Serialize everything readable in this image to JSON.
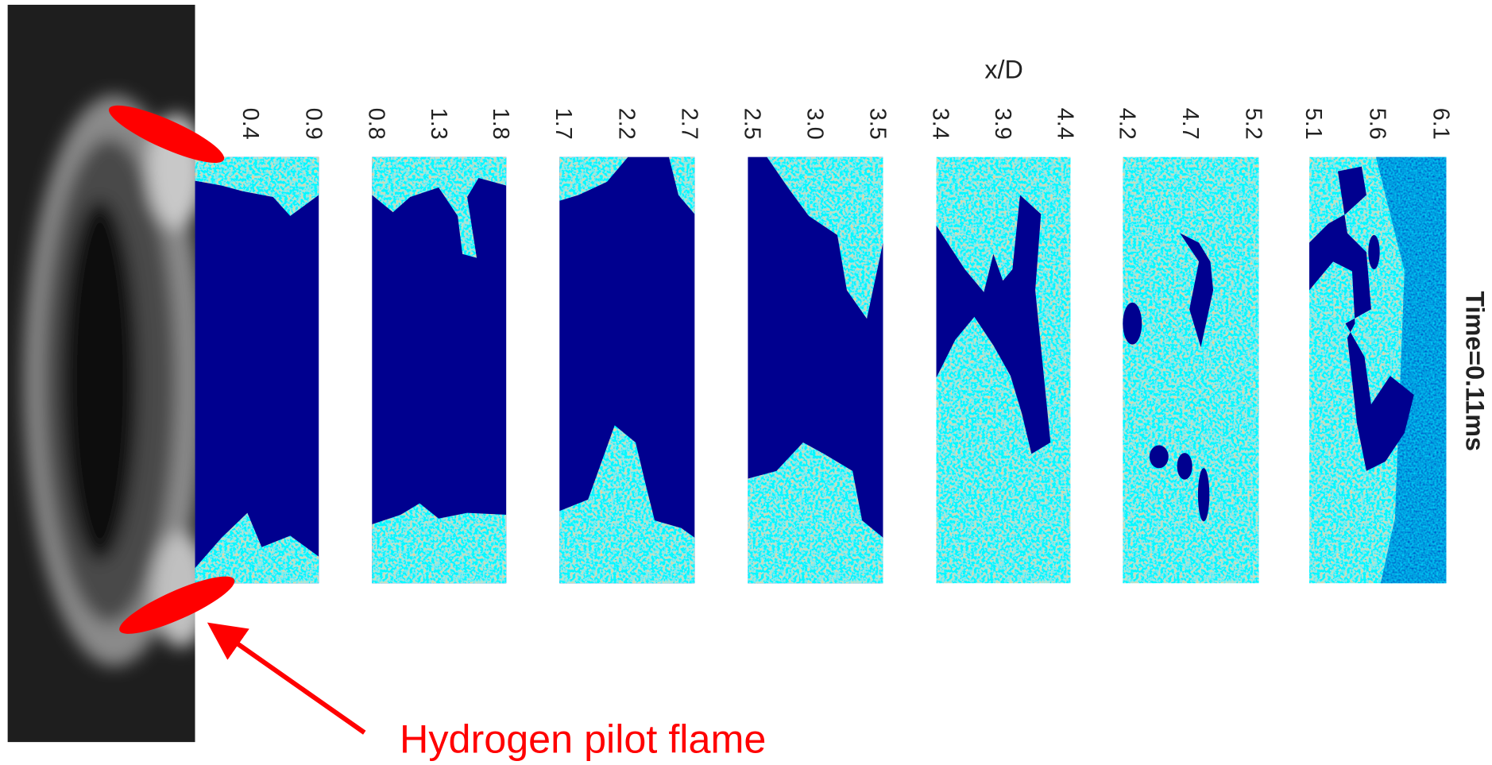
{
  "figure": {
    "axis_label": "x/D",
    "time_label": "Time=0.11ms",
    "annotation": "Hydrogen pilot flame",
    "panels": [
      {
        "ticks": [
          "0.4",
          "0.9"
        ]
      },
      {
        "ticks": [
          "0.8",
          "1.3",
          "1.8"
        ]
      },
      {
        "ticks": [
          "1.7",
          "2.2",
          "2.7"
        ]
      },
      {
        "ticks": [
          "2.5",
          "3.0",
          "3.5"
        ]
      },
      {
        "ticks": [
          "3.4",
          "3.9",
          "4.4"
        ]
      },
      {
        "ticks": [
          "4.2",
          "4.7",
          "5.2"
        ]
      },
      {
        "ticks": [
          "5.1",
          "5.6",
          "6.1"
        ]
      }
    ]
  }
}
